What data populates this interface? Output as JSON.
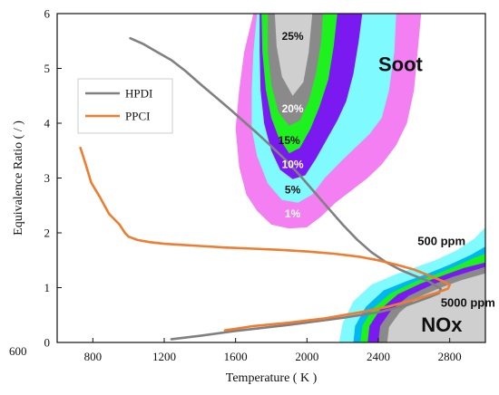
{
  "chart_data": {
    "type": "line",
    "xlabel": "Temperature ( K )",
    "ylabel": "Equivalence Ratio ( / )",
    "xlim": [
      600,
      3000
    ],
    "ylim": [
      0,
      6
    ],
    "x_ticks": [
      {
        "value": 600,
        "label": "600"
      },
      {
        "value": 800,
        "label": "800"
      },
      {
        "value": 1200,
        "label": "1200"
      },
      {
        "value": 1600,
        "label": "1600"
      },
      {
        "value": 2000,
        "label": "2000"
      },
      {
        "value": 2400,
        "label": "2400"
      },
      {
        "value": 2800,
        "label": "2800"
      }
    ],
    "y_ticks": [
      {
        "value": 0,
        "label": "0"
      },
      {
        "value": 1,
        "label": "1"
      },
      {
        "value": 2,
        "label": "2"
      },
      {
        "value": 3,
        "label": "3"
      },
      {
        "value": 4,
        "label": "4"
      },
      {
        "value": 5,
        "label": "5"
      },
      {
        "value": 6,
        "label": "6"
      }
    ],
    "legend_position": "upper-left",
    "series": [
      {
        "name": "HPDI",
        "color": "#808080",
        "points": [
          [
            1010,
            5.55
          ],
          [
            1080,
            5.45
          ],
          [
            1160,
            5.3
          ],
          [
            1240,
            5.15
          ],
          [
            1320,
            4.95
          ],
          [
            1400,
            4.72
          ],
          [
            1480,
            4.5
          ],
          [
            1560,
            4.28
          ],
          [
            1640,
            4.05
          ],
          [
            1720,
            3.82
          ],
          [
            1800,
            3.58
          ],
          [
            1880,
            3.33
          ],
          [
            1960,
            3.05
          ],
          [
            2040,
            2.75
          ],
          [
            2120,
            2.45
          ],
          [
            2200,
            2.15
          ],
          [
            2280,
            1.88
          ],
          [
            2360,
            1.65
          ],
          [
            2440,
            1.47
          ],
          [
            2520,
            1.33
          ],
          [
            2600,
            1.22
          ],
          [
            2680,
            1.12
          ],
          [
            2720,
            1.04
          ],
          [
            2750,
            0.98
          ],
          [
            2740,
            0.9
          ],
          [
            2680,
            0.82
          ],
          [
            2560,
            0.68
          ],
          [
            2400,
            0.55
          ],
          [
            2200,
            0.45
          ],
          [
            1900,
            0.32
          ],
          [
            1600,
            0.21
          ],
          [
            1400,
            0.12
          ],
          [
            1240,
            0.06
          ]
        ]
      },
      {
        "name": "PPCI",
        "color": "#ed7d31",
        "points": [
          [
            730,
            3.55
          ],
          [
            760,
            3.25
          ],
          [
            790,
            2.92
          ],
          [
            840,
            2.65
          ],
          [
            890,
            2.35
          ],
          [
            920,
            2.25
          ],
          [
            950,
            2.15
          ],
          [
            980,
            2.0
          ],
          [
            1000,
            1.93
          ],
          [
            1050,
            1.87
          ],
          [
            1120,
            1.83
          ],
          [
            1200,
            1.8
          ],
          [
            1300,
            1.78
          ],
          [
            1400,
            1.76
          ],
          [
            1550,
            1.73
          ],
          [
            1700,
            1.71
          ],
          [
            1850,
            1.69
          ],
          [
            2000,
            1.66
          ],
          [
            2150,
            1.62
          ],
          [
            2300,
            1.56
          ],
          [
            2400,
            1.5
          ],
          [
            2500,
            1.42
          ],
          [
            2600,
            1.33
          ],
          [
            2700,
            1.2
          ],
          [
            2760,
            1.12
          ],
          [
            2800,
            1.05
          ],
          [
            2790,
            0.98
          ],
          [
            2720,
            0.9
          ],
          [
            2600,
            0.78
          ],
          [
            2450,
            0.65
          ],
          [
            2300,
            0.55
          ],
          [
            2100,
            0.44
          ],
          [
            1900,
            0.36
          ],
          [
            1700,
            0.3
          ],
          [
            1540,
            0.22
          ]
        ]
      }
    ],
    "soot_contours": [
      {
        "label": "1%",
        "color": "#f37ff2",
        "label_x": 1920,
        "label_y": 2.28,
        "label_color": "#ffffff",
        "points": [
          [
            1700,
            6.0
          ],
          [
            1648,
            5.3
          ],
          [
            1620,
            4.6
          ],
          [
            1600,
            3.9
          ],
          [
            1620,
            3.2
          ],
          [
            1660,
            2.7
          ],
          [
            1720,
            2.4
          ],
          [
            1800,
            2.15
          ],
          [
            1900,
            2.08
          ],
          [
            2000,
            2.1
          ],
          [
            2080,
            2.3
          ],
          [
            2160,
            2.55
          ],
          [
            2260,
            2.8
          ],
          [
            2340,
            3.0
          ],
          [
            2420,
            3.25
          ],
          [
            2500,
            3.6
          ],
          [
            2560,
            4.0
          ],
          [
            2600,
            4.6
          ],
          [
            2620,
            5.3
          ],
          [
            2640,
            6.0
          ]
        ]
      },
      {
        "label": "5%",
        "color": "#7ffaff",
        "label_x": 1920,
        "label_y": 2.72,
        "label_color": "#111111",
        "points": [
          [
            1720,
            6.0
          ],
          [
            1700,
            5.3
          ],
          [
            1690,
            4.6
          ],
          [
            1690,
            3.9
          ],
          [
            1720,
            3.4
          ],
          [
            1780,
            2.9
          ],
          [
            1860,
            2.6
          ],
          [
            1950,
            2.55
          ],
          [
            2030,
            2.7
          ],
          [
            2100,
            3.0
          ],
          [
            2190,
            3.3
          ],
          [
            2270,
            3.55
          ],
          [
            2350,
            3.8
          ],
          [
            2420,
            4.1
          ],
          [
            2460,
            4.6
          ],
          [
            2490,
            5.3
          ],
          [
            2500,
            6.0
          ]
        ]
      },
      {
        "label": "10%",
        "color": "#7a1af0",
        "label_x": 1920,
        "label_y": 3.18,
        "label_color": "#ffffff",
        "points": [
          [
            1735,
            6.0
          ],
          [
            1735,
            5.3
          ],
          [
            1740,
            4.6
          ],
          [
            1760,
            4.0
          ],
          [
            1800,
            3.5
          ],
          [
            1850,
            3.15
          ],
          [
            1920,
            2.98
          ],
          [
            1990,
            3.05
          ],
          [
            2050,
            3.35
          ],
          [
            2110,
            3.7
          ],
          [
            2170,
            4.05
          ],
          [
            2220,
            4.4
          ],
          [
            2260,
            4.9
          ],
          [
            2290,
            5.5
          ],
          [
            2310,
            6.0
          ]
        ]
      },
      {
        "label": "15%",
        "color": "#1ef21e",
        "label_x": 1900,
        "label_y": 3.62,
        "label_color": "#111111",
        "points": [
          [
            1745,
            6.0
          ],
          [
            1750,
            5.3
          ],
          [
            1770,
            4.6
          ],
          [
            1800,
            4.1
          ],
          [
            1840,
            3.75
          ],
          [
            1900,
            3.45
          ],
          [
            1960,
            3.55
          ],
          [
            2020,
            3.9
          ],
          [
            2070,
            4.3
          ],
          [
            2120,
            4.8
          ],
          [
            2150,
            5.4
          ],
          [
            2170,
            6.0
          ]
        ]
      },
      {
        "label": "20%",
        "color": "#8a8a8a",
        "label_x": 1920,
        "label_y": 4.2,
        "label_color": "#ffffff",
        "points": [
          [
            1780,
            6.0
          ],
          [
            1780,
            5.3
          ],
          [
            1800,
            4.7
          ],
          [
            1840,
            4.2
          ],
          [
            1900,
            3.95
          ],
          [
            1960,
            4.05
          ],
          [
            2010,
            4.4
          ],
          [
            2050,
            4.9
          ],
          [
            2080,
            5.5
          ],
          [
            2090,
            6.0
          ]
        ]
      },
      {
        "label": "25%",
        "color": "#cfcfcf",
        "label_x": 1920,
        "label_y": 5.52,
        "label_color": "#111111",
        "points": [
          [
            1820,
            6.0
          ],
          [
            1830,
            5.4
          ],
          [
            1860,
            4.85
          ],
          [
            1920,
            4.5
          ],
          [
            1980,
            4.75
          ],
          [
            2010,
            5.3
          ],
          [
            2030,
            6.0
          ]
        ]
      }
    ],
    "nox_contours": [
      {
        "label": "500 ppm",
        "color": "#7ffaff",
        "label_x": 2620,
        "label_y": 1.78,
        "points": [
          [
            2180,
            0.0
          ],
          [
            2200,
            0.35
          ],
          [
            2260,
            0.75
          ],
          [
            2360,
            1.05
          ],
          [
            2480,
            1.22
          ],
          [
            2600,
            1.36
          ],
          [
            2720,
            1.5
          ],
          [
            2840,
            1.68
          ],
          [
            2940,
            1.9
          ],
          [
            3000,
            2.1
          ],
          [
            3000,
            0.0
          ]
        ]
      },
      {
        "label": "",
        "color": "#00b7f0",
        "label_x": 0,
        "label_y": 0,
        "points": [
          [
            2260,
            0.0
          ],
          [
            2270,
            0.3
          ],
          [
            2330,
            0.65
          ],
          [
            2430,
            0.95
          ],
          [
            2560,
            1.12
          ],
          [
            2680,
            1.26
          ],
          [
            2800,
            1.42
          ],
          [
            2920,
            1.6
          ],
          [
            3000,
            1.75
          ],
          [
            3000,
            0.0
          ]
        ]
      },
      {
        "label": "",
        "color": "#1ef21e",
        "label_x": 0,
        "label_y": 0,
        "points": [
          [
            2300,
            0.0
          ],
          [
            2310,
            0.3
          ],
          [
            2370,
            0.62
          ],
          [
            2470,
            0.9
          ],
          [
            2600,
            1.1
          ],
          [
            2720,
            1.24
          ],
          [
            2840,
            1.4
          ],
          [
            2940,
            1.55
          ],
          [
            3000,
            1.62
          ],
          [
            3000,
            0.0
          ]
        ]
      },
      {
        "label": "",
        "color": "#7a1af0",
        "label_x": 0,
        "label_y": 0,
        "points": [
          [
            2340,
            0.0
          ],
          [
            2350,
            0.3
          ],
          [
            2410,
            0.6
          ],
          [
            2510,
            0.88
          ],
          [
            2640,
            1.08
          ],
          [
            2760,
            1.22
          ],
          [
            2880,
            1.36
          ],
          [
            3000,
            1.46
          ],
          [
            3000,
            0.0
          ]
        ]
      },
      {
        "label": "5000 ppm",
        "color": "#8a8a8a",
        "label_x": 2750,
        "label_y": 0.65,
        "points": [
          [
            2400,
            0.0
          ],
          [
            2410,
            0.3
          ],
          [
            2470,
            0.58
          ],
          [
            2570,
            0.85
          ],
          [
            2700,
            1.05
          ],
          [
            2820,
            1.2
          ],
          [
            2940,
            1.32
          ],
          [
            3000,
            1.38
          ],
          [
            3000,
            0.0
          ]
        ]
      },
      {
        "label": "",
        "color": "#cfcfcf",
        "label_x": 0,
        "label_y": 0,
        "points": [
          [
            2450,
            0.0
          ],
          [
            2460,
            0.28
          ],
          [
            2520,
            0.55
          ],
          [
            2620,
            0.82
          ],
          [
            2750,
            1.0
          ],
          [
            2870,
            1.14
          ],
          [
            3000,
            1.26
          ],
          [
            3000,
            0.0
          ]
        ]
      }
    ],
    "annotations": [
      {
        "name": "soot-label",
        "text": "Soot",
        "x": 2400,
        "y": 4.95
      },
      {
        "name": "nox-label",
        "text": "NOx",
        "x": 2640,
        "y": 0.2
      }
    ]
  }
}
